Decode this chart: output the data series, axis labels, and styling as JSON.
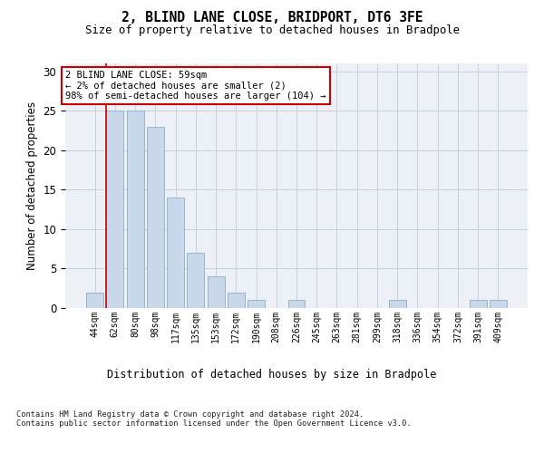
{
  "title": "2, BLIND LANE CLOSE, BRIDPORT, DT6 3FE",
  "subtitle": "Size of property relative to detached houses in Bradpole",
  "xlabel": "Distribution of detached houses by size in Bradpole",
  "ylabel": "Number of detached properties",
  "bar_labels": [
    "44sqm",
    "62sqm",
    "80sqm",
    "98sqm",
    "117sqm",
    "135sqm",
    "153sqm",
    "172sqm",
    "190sqm",
    "208sqm",
    "226sqm",
    "245sqm",
    "263sqm",
    "281sqm",
    "299sqm",
    "318sqm",
    "336sqm",
    "354sqm",
    "372sqm",
    "391sqm",
    "409sqm"
  ],
  "bar_heights": [
    2,
    25,
    25,
    23,
    14,
    7,
    4,
    2,
    1,
    0,
    1,
    0,
    0,
    0,
    0,
    1,
    0,
    0,
    0,
    1,
    1
  ],
  "bar_color": "#c8d8ea",
  "bar_edge_color": "#8aafc8",
  "highlight_color": "#cc0000",
  "annotation_text": "2 BLIND LANE CLOSE: 59sqm\n← 2% of detached houses are smaller (2)\n98% of semi-detached houses are larger (104) →",
  "annotation_box_color": "#ffffff",
  "annotation_box_edge_color": "#cc0000",
  "ylim": [
    0,
    31
  ],
  "yticks": [
    0,
    5,
    10,
    15,
    20,
    25,
    30
  ],
  "grid_color": "#c8d0de",
  "background_color": "#edf1f7",
  "footnote": "Contains HM Land Registry data © Crown copyright and database right 2024.\nContains public sector information licensed under the Open Government Licence v3.0."
}
